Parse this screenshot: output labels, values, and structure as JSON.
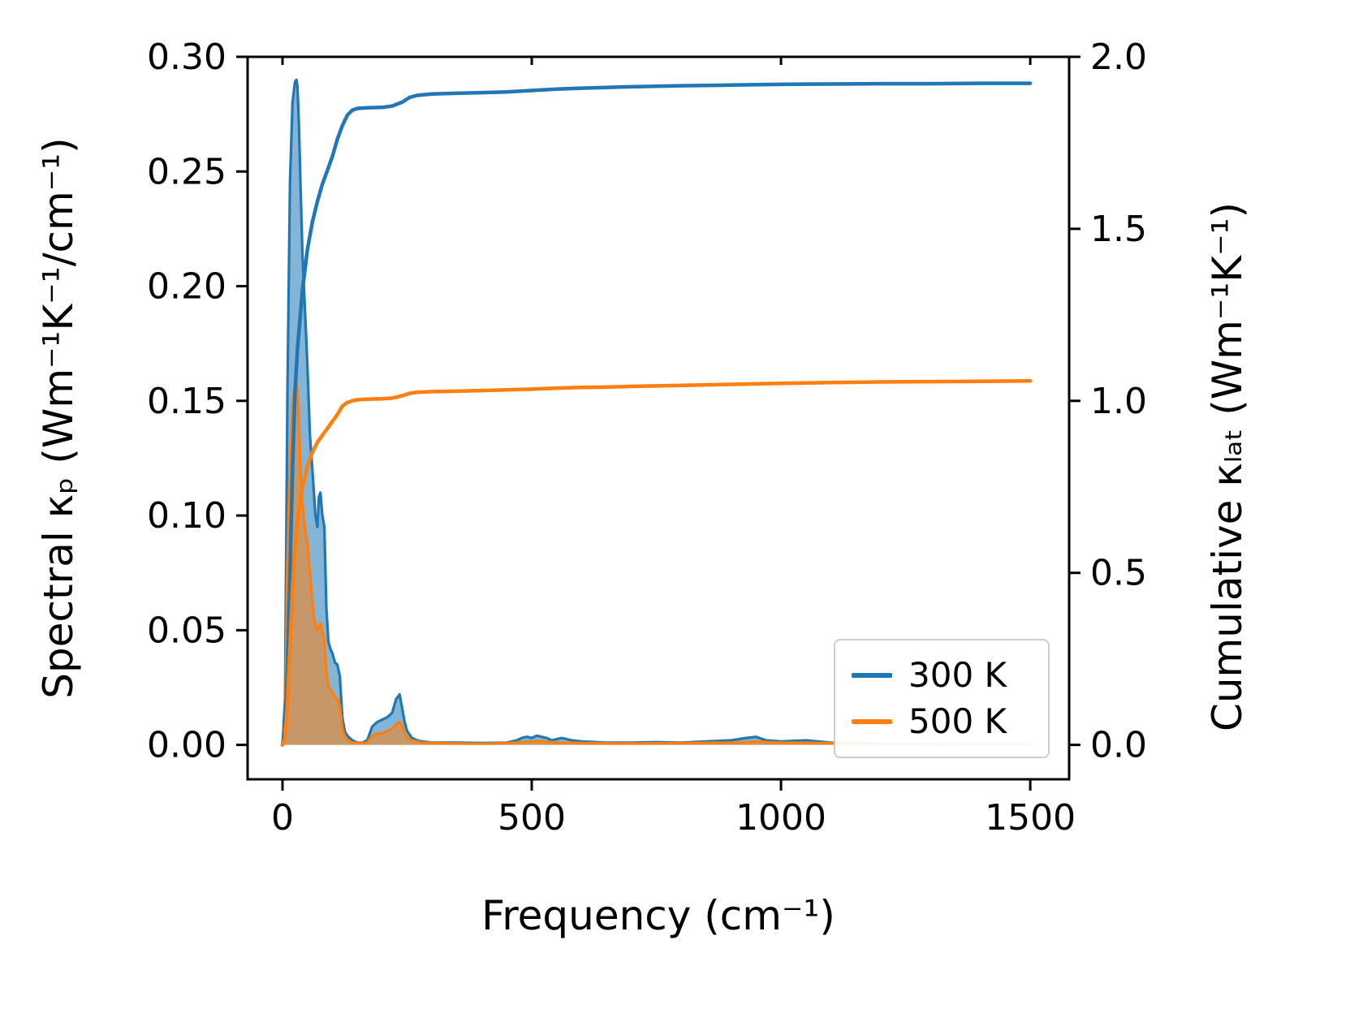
{
  "chart_data": {
    "type": "line",
    "title": "",
    "xlabel": "Frequency (cm⁻¹)",
    "ylabel_left": "Spectral κₚ (Wm⁻¹K⁻¹/cm⁻¹)",
    "ylabel_right": "Cumulative κₗₐₜ (Wm⁻¹K⁻¹)",
    "xlim": [
      -70,
      1578
    ],
    "ylim_left": [
      -0.015,
      0.3
    ],
    "ylim_right": [
      -0.1,
      2.0
    ],
    "grid": false,
    "legend_position": "lower right",
    "xticks": {
      "values": [
        0,
        500,
        1000,
        1500
      ],
      "labels": [
        "0",
        "500",
        "1000",
        "1500"
      ]
    },
    "yticks_left": {
      "values": [
        0,
        0.05,
        0.1,
        0.15,
        0.2,
        0.25,
        0.3
      ],
      "labels": [
        "0.00",
        "0.05",
        "0.10",
        "0.15",
        "0.20",
        "0.25",
        "0.30"
      ]
    },
    "yticks_right": {
      "values": [
        0,
        0.5,
        1.0,
        1.5,
        2.0
      ],
      "labels": [
        "0.0",
        "0.5",
        "1.0",
        "1.5",
        "2.0"
      ]
    },
    "colors": {
      "300 K": "#1f77b4",
      "500 K": "#ff7f0e"
    },
    "fill_alpha": 0.55,
    "legend": {
      "items": [
        {
          "label": "300 K",
          "color": "#1f77b4"
        },
        {
          "label": "500 K",
          "color": "#ff7f0e"
        }
      ]
    },
    "spectral": {
      "x": [
        0,
        5,
        10,
        15,
        20,
        25,
        28,
        30,
        33,
        36,
        40,
        45,
        48,
        50,
        55,
        60,
        63,
        66,
        70,
        73,
        76,
        80,
        84,
        88,
        92,
        96,
        100,
        105,
        110,
        115,
        120,
        125,
        130,
        140,
        150,
        160,
        170,
        180,
        190,
        200,
        210,
        220,
        228,
        235,
        240,
        245,
        250,
        260,
        270,
        280,
        300,
        350,
        400,
        450,
        470,
        480,
        490,
        500,
        510,
        520,
        530,
        540,
        560,
        580,
        600,
        650,
        700,
        750,
        800,
        850,
        900,
        930,
        950,
        970,
        1000,
        1050,
        1100,
        1150,
        1200,
        1300,
        1400,
        1500
      ],
      "series": [
        {
          "name": "300 K",
          "values": [
            0.0,
            0.02,
            0.155,
            0.245,
            0.28,
            0.289,
            0.29,
            0.287,
            0.27,
            0.245,
            0.215,
            0.19,
            0.175,
            0.165,
            0.135,
            0.12,
            0.11,
            0.1,
            0.095,
            0.108,
            0.11,
            0.1,
            0.095,
            0.06,
            0.045,
            0.042,
            0.04,
            0.036,
            0.035,
            0.03,
            0.012,
            0.006,
            0.004,
            0.002,
            0.001,
            0.001,
            0.002,
            0.008,
            0.01,
            0.011,
            0.012,
            0.014,
            0.02,
            0.022,
            0.016,
            0.01,
            0.006,
            0.003,
            0.002,
            0.0015,
            0.001,
            0.001,
            0.0008,
            0.001,
            0.002,
            0.003,
            0.0035,
            0.003,
            0.004,
            0.0035,
            0.003,
            0.002,
            0.003,
            0.002,
            0.0015,
            0.001,
            0.001,
            0.0012,
            0.001,
            0.0015,
            0.002,
            0.003,
            0.0035,
            0.002,
            0.0015,
            0.002,
            0.001,
            0.0008,
            0.0005,
            0.0004,
            0.0003,
            0.0003
          ]
        },
        {
          "name": "500 K",
          "values": [
            0.0,
            0.01,
            0.08,
            0.125,
            0.148,
            0.157,
            0.158,
            0.155,
            0.14,
            0.12,
            0.105,
            0.095,
            0.09,
            0.088,
            0.075,
            0.062,
            0.056,
            0.052,
            0.05,
            0.052,
            0.053,
            0.05,
            0.045,
            0.032,
            0.026,
            0.024,
            0.023,
            0.021,
            0.02,
            0.017,
            0.007,
            0.004,
            0.002,
            0.001,
            0.0008,
            0.0008,
            0.001,
            0.004,
            0.005,
            0.005,
            0.006,
            0.007,
            0.009,
            0.01,
            0.008,
            0.005,
            0.003,
            0.002,
            0.0015,
            0.001,
            0.0008,
            0.0006,
            0.0005,
            0.0008,
            0.001,
            0.0012,
            0.0014,
            0.0015,
            0.0016,
            0.0018,
            0.0014,
            0.0012,
            0.001,
            0.0009,
            0.0008,
            0.0007,
            0.0006,
            0.0007,
            0.0008,
            0.0009,
            0.001,
            0.0012,
            0.0015,
            0.0012,
            0.001,
            0.0009,
            0.0008,
            0.0006,
            0.0005,
            0.0004,
            0.0003,
            0.0003
          ]
        }
      ]
    },
    "cumulative": {
      "x": [
        0,
        5,
        10,
        15,
        20,
        25,
        30,
        40,
        50,
        60,
        70,
        80,
        90,
        100,
        110,
        120,
        130,
        140,
        150,
        170,
        200,
        220,
        240,
        255,
        270,
        300,
        350,
        400,
        450,
        500,
        550,
        600,
        650,
        700,
        800,
        900,
        1000,
        1100,
        1200,
        1300,
        1400,
        1500
      ],
      "series": [
        {
          "name": "300 K",
          "values": [
            0,
            0.04,
            0.22,
            0.5,
            0.8,
            1.02,
            1.15,
            1.32,
            1.44,
            1.52,
            1.58,
            1.63,
            1.67,
            1.71,
            1.76,
            1.8,
            1.83,
            1.845,
            1.85,
            1.852,
            1.853,
            1.857,
            1.868,
            1.882,
            1.888,
            1.892,
            1.894,
            1.896,
            1.898,
            1.902,
            1.906,
            1.909,
            1.911,
            1.913,
            1.916,
            1.918,
            1.92,
            1.921,
            1.922,
            1.922,
            1.923,
            1.923
          ]
        },
        {
          "name": "500 K",
          "values": [
            0,
            0.02,
            0.12,
            0.28,
            0.45,
            0.57,
            0.65,
            0.75,
            0.81,
            0.85,
            0.88,
            0.9,
            0.92,
            0.94,
            0.96,
            0.985,
            0.995,
            1.0,
            1.003,
            1.005,
            1.006,
            1.008,
            1.015,
            1.022,
            1.025,
            1.027,
            1.028,
            1.03,
            1.032,
            1.034,
            1.037,
            1.039,
            1.04,
            1.042,
            1.045,
            1.048,
            1.051,
            1.053,
            1.055,
            1.056,
            1.057,
            1.058
          ]
        }
      ]
    }
  }
}
